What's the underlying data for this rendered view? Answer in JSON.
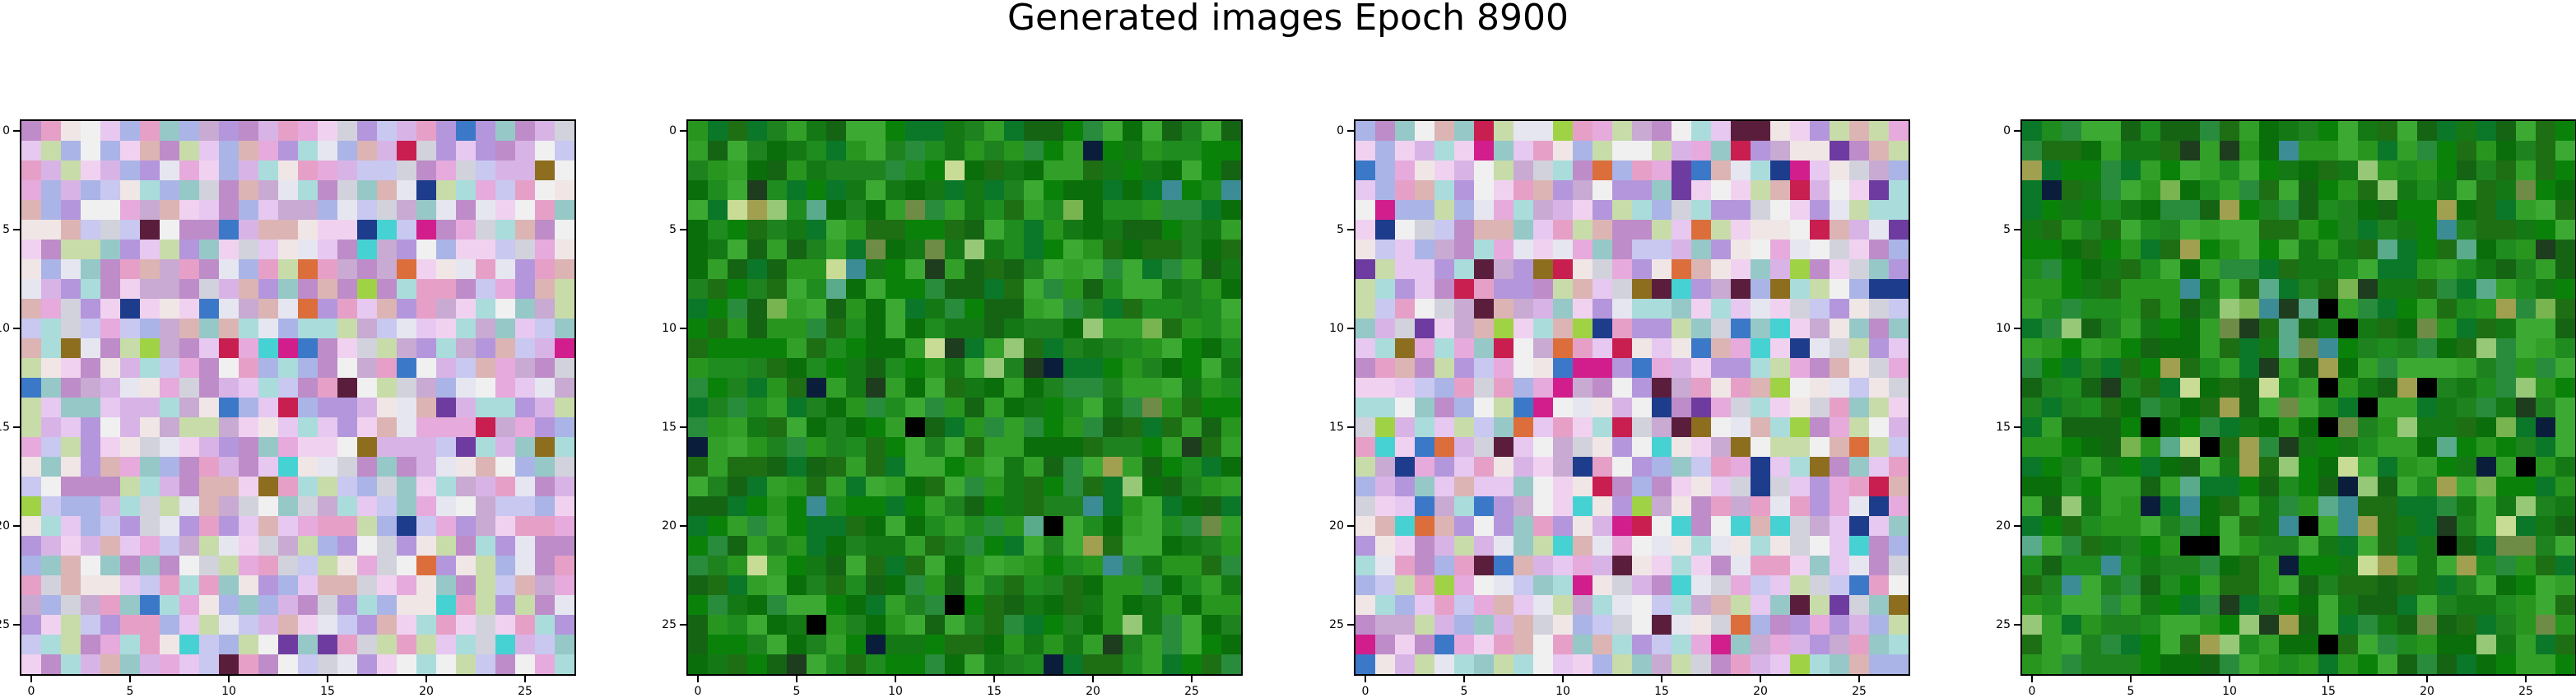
{
  "figure": {
    "title": "Generated images Epoch 8900"
  },
  "panels": [
    {
      "name": "generated-image-1",
      "style": "pastel"
    },
    {
      "name": "generated-image-2",
      "style": "green"
    },
    {
      "name": "generated-image-3",
      "style": "pastel-dark"
    },
    {
      "name": "generated-image-4",
      "style": "green-dark"
    }
  ],
  "axes": {
    "x_ticks": [
      "0",
      "5",
      "10",
      "15",
      "20",
      "25"
    ],
    "y_ticks": [
      "0",
      "5",
      "10",
      "15",
      "20",
      "25"
    ],
    "grid_size": 28
  },
  "colors": {
    "pastel": [
      "#e6c8f0",
      "#d8b4e6",
      "#f0d2f0",
      "#c8c8f0",
      "#e6e6f0",
      "#f0e6e6",
      "#b496dc",
      "#c8aad2",
      "#e6aadc",
      "#aab4e6",
      "#96c8c8",
      "#c8dcaa",
      "#e6a0c8",
      "#d2d2dc",
      "#f0f0f0",
      "#aadcdc",
      "#dcb4b4",
      "#be8cc8"
    ],
    "pastel_accents": [
      "#d21e8c",
      "#6e3ca0",
      "#3c78c8",
      "#8c6e1e",
      "#a0d246",
      "#c81e50",
      "#5a1e3c",
      "#1e3c8c",
      "#dc6e3c",
      "#46d2d2"
    ],
    "green": [
      "#1e8c1e",
      "#147814",
      "#0a6e0a",
      "#28961e",
      "#0a820a",
      "#1e6e14",
      "#32a028",
      "#146414",
      "#288c3c",
      "#0a7828",
      "#3caa32",
      "#1e821e"
    ],
    "green_accents": [
      "#0a1e3c",
      "#000000",
      "#96c878",
      "#5aaa8c",
      "#78b450",
      "#3c8c96",
      "#a0a050",
      "#1e3c1e",
      "#6e8c46",
      "#c8dc96"
    ]
  }
}
